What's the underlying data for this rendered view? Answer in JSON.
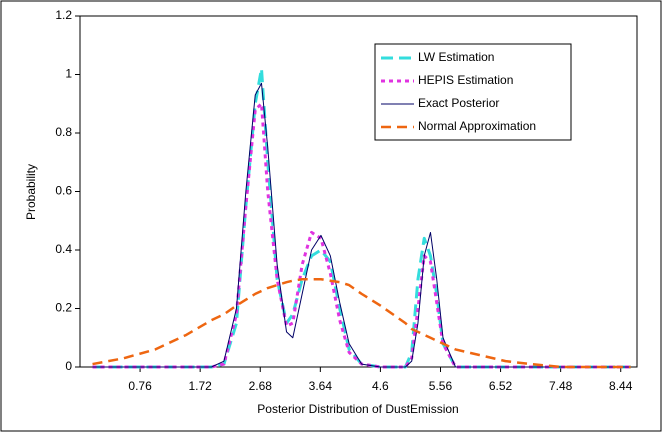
{
  "chart_data": {
    "type": "line",
    "x_label": "Posterior Distribution of DustEmission",
    "y_label": "Probability",
    "x": [
      0,
      0.5,
      1,
      1.5,
      1.9,
      2.1,
      2.3,
      2.45,
      2.6,
      2.7,
      2.8,
      2.95,
      3.1,
      3.2,
      3.35,
      3.5,
      3.65,
      3.8,
      3.95,
      4.1,
      4.3,
      4.6,
      5,
      5.1,
      5.2,
      5.3,
      5.4,
      5.5,
      5.6,
      5.8,
      6.2,
      6.6,
      7,
      7.5,
      8,
      8.6
    ],
    "series": [
      {
        "name": "LW Estimation",
        "color": "#33dddd",
        "dash": "12,6",
        "width": 3,
        "values": [
          0,
          0,
          0,
          0,
          0,
          0.01,
          0.15,
          0.55,
          0.9,
          1.02,
          0.7,
          0.3,
          0.15,
          0.18,
          0.3,
          0.38,
          0.4,
          0.36,
          0.2,
          0.06,
          0.01,
          0,
          0,
          0.05,
          0.3,
          0.44,
          0.38,
          0.25,
          0.08,
          0,
          0,
          0,
          0,
          0,
          0,
          0
        ]
      },
      {
        "name": "HEPIS Estimation",
        "color": "#e033e0",
        "dash": "4,4",
        "width": 3,
        "values": [
          0,
          0,
          0,
          0,
          0,
          0.01,
          0.18,
          0.55,
          0.88,
          0.9,
          0.6,
          0.3,
          0.14,
          0.15,
          0.35,
          0.46,
          0.44,
          0.32,
          0.16,
          0.05,
          0.01,
          0,
          0,
          0.03,
          0.2,
          0.38,
          0.36,
          0.22,
          0.08,
          0,
          0,
          0,
          0,
          0,
          0,
          0
        ]
      },
      {
        "name": "Exact Posterior",
        "color": "#000066",
        "dash": "",
        "width": 1,
        "values": [
          0,
          0,
          0,
          0,
          0,
          0.02,
          0.2,
          0.6,
          0.93,
          0.97,
          0.75,
          0.35,
          0.12,
          0.1,
          0.25,
          0.4,
          0.45,
          0.38,
          0.22,
          0.08,
          0.01,
          0,
          0,
          0.02,
          0.15,
          0.38,
          0.46,
          0.3,
          0.1,
          0,
          0,
          0,
          0,
          0,
          0,
          0
        ]
      },
      {
        "name": "Normal Approximation",
        "color": "#ee6611",
        "dash": "10,6",
        "width": 2.5,
        "values": [
          0.01,
          0.03,
          0.06,
          0.11,
          0.16,
          0.18,
          0.21,
          0.23,
          0.25,
          0.26,
          0.27,
          0.28,
          0.29,
          0.295,
          0.3,
          0.3,
          0.3,
          0.295,
          0.29,
          0.28,
          0.25,
          0.21,
          0.15,
          0.13,
          0.12,
          0.11,
          0.1,
          0.09,
          0.08,
          0.06,
          0.04,
          0.02,
          0.01,
          0,
          0,
          0
        ]
      }
    ],
    "xlim": [
      -0.2,
      8.7
    ],
    "xticks": [
      0.76,
      1.72,
      2.68,
      3.64,
      4.6,
      5.56,
      6.52,
      7.48,
      8.44
    ],
    "ylim": [
      0,
      1.2
    ],
    "yticks": [
      0,
      0.2,
      0.4,
      0.6,
      0.8,
      1,
      1.2
    ]
  }
}
